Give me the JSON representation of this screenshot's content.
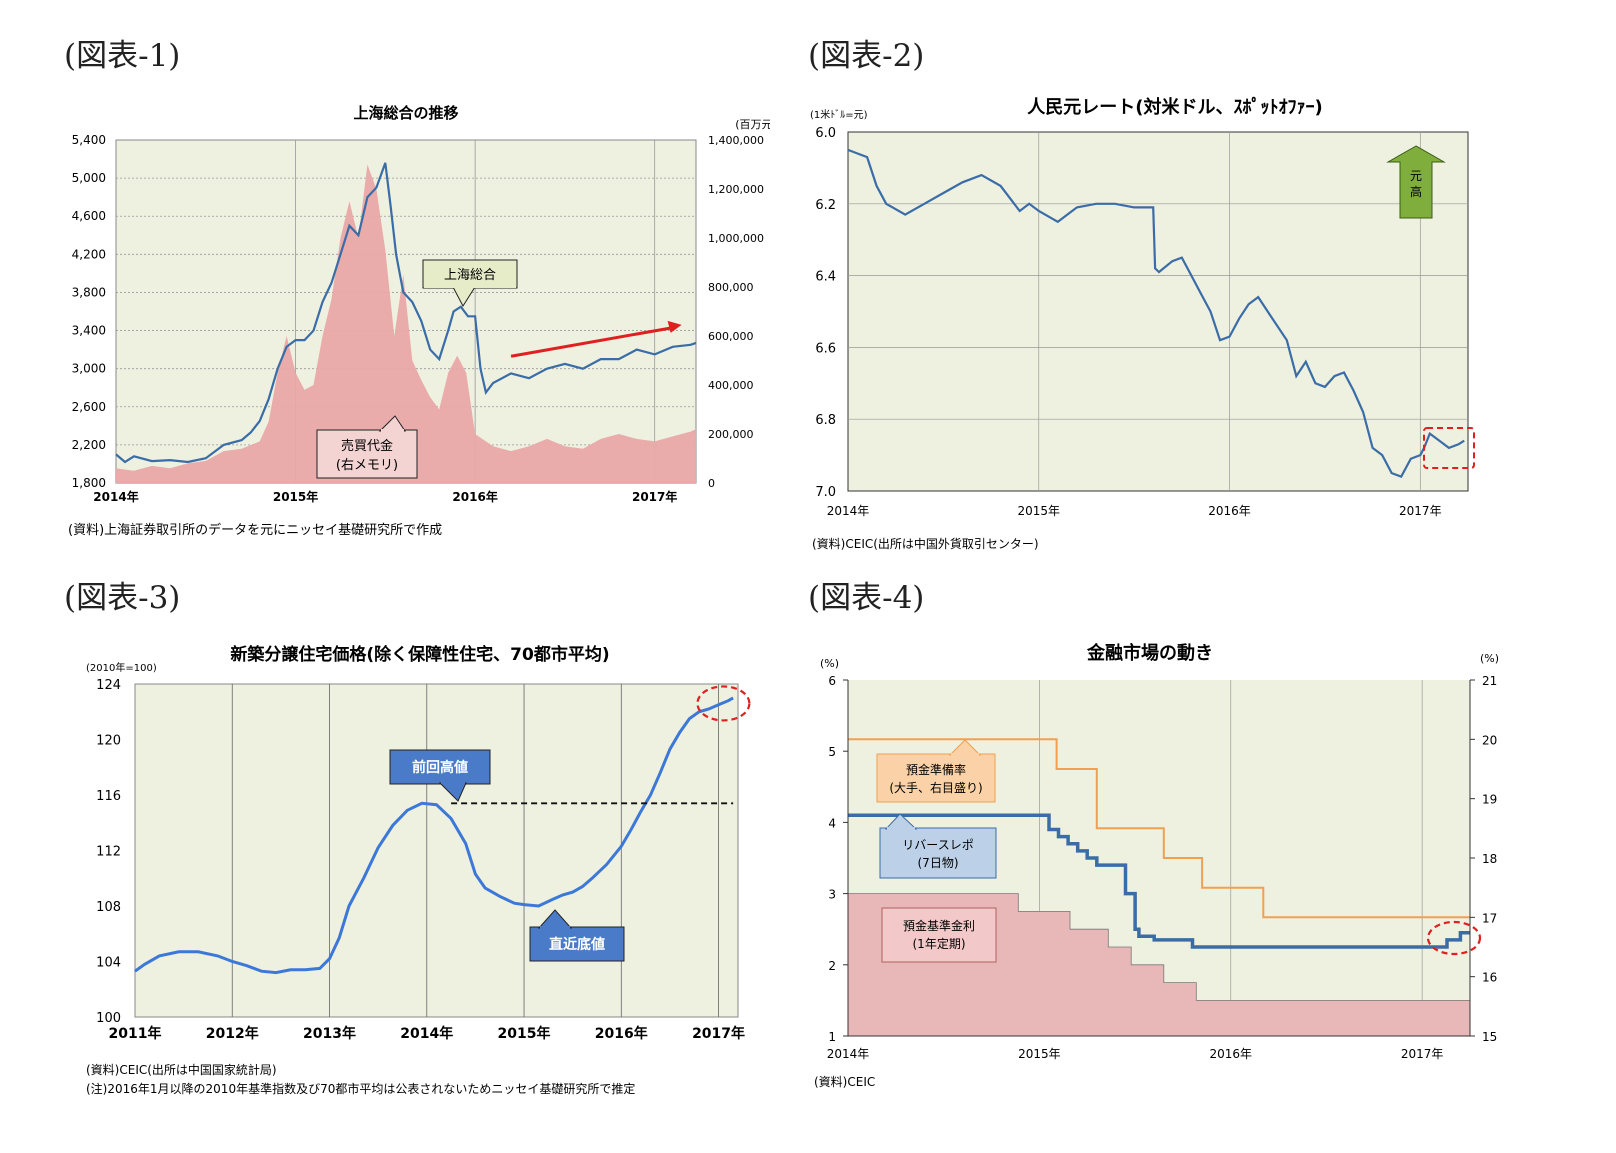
{
  "figures": [
    {
      "label": "(図表-1)"
    },
    {
      "label": "(図表-2)"
    },
    {
      "label": "(図表-3)"
    },
    {
      "label": "(図表-4)"
    }
  ],
  "chart_data": [
    {
      "type": "line",
      "title": "上海総合の推移",
      "right_unit": "(百万元)",
      "x_tick_labels": [
        "2014年",
        "2015年",
        "2016年",
        "2017年"
      ],
      "x_range": [
        2014.0,
        2017.23
      ],
      "y_left_ticks": [
        "1,800",
        "2,200",
        "2,600",
        "3,000",
        "3,400",
        "3,800",
        "4,200",
        "4,600",
        "5,000",
        "5,400"
      ],
      "y_left_range": [
        1800,
        5400
      ],
      "y_right_ticks": [
        "0",
        "200,000",
        "400,000",
        "600,000",
        "800,000",
        "1,000,000",
        "1,200,000",
        "1,400,000"
      ],
      "y_right_range": [
        0,
        1400000
      ],
      "series": [
        {
          "name": "上海総合",
          "axis": "left",
          "kind": "line",
          "x": [
            2014.0,
            2014.05,
            2014.1,
            2014.2,
            2014.3,
            2014.4,
            2014.5,
            2014.6,
            2014.7,
            2014.75,
            2014.8,
            2014.85,
            2014.9,
            2014.95,
            2015.0,
            2015.05,
            2015.1,
            2015.15,
            2015.2,
            2015.25,
            2015.3,
            2015.35,
            2015.4,
            2015.45,
            2015.5,
            2015.53,
            2015.56,
            2015.6,
            2015.65,
            2015.7,
            2015.75,
            2015.8,
            2015.85,
            2015.88,
            2015.92,
            2015.96,
            2016.0,
            2016.03,
            2016.06,
            2016.1,
            2016.2,
            2016.3,
            2016.4,
            2016.5,
            2016.6,
            2016.7,
            2016.8,
            2016.9,
            2017.0,
            2017.1,
            2017.2,
            2017.23
          ],
          "y": [
            2100,
            2020,
            2080,
            2030,
            2040,
            2020,
            2060,
            2200,
            2250,
            2330,
            2450,
            2680,
            3000,
            3230,
            3300,
            3300,
            3400,
            3700,
            3900,
            4200,
            4500,
            4400,
            4800,
            4900,
            5160,
            4700,
            4200,
            3800,
            3700,
            3500,
            3200,
            3100,
            3400,
            3600,
            3650,
            3550,
            3550,
            3000,
            2750,
            2850,
            2950,
            2900,
            3000,
            3050,
            3000,
            3100,
            3100,
            3200,
            3150,
            3230,
            3250,
            3270
          ]
        },
        {
          "name": "売買代金",
          "axis": "right",
          "kind": "area",
          "x": [
            2014.0,
            2014.1,
            2014.2,
            2014.3,
            2014.4,
            2014.5,
            2014.6,
            2014.7,
            2014.8,
            2014.85,
            2014.9,
            2014.95,
            2015.0,
            2015.05,
            2015.1,
            2015.15,
            2015.2,
            2015.25,
            2015.3,
            2015.35,
            2015.4,
            2015.45,
            2015.5,
            2015.55,
            2015.6,
            2015.65,
            2015.7,
            2015.75,
            2015.8,
            2015.85,
            2015.9,
            2015.95,
            2016.0,
            2016.1,
            2016.2,
            2016.3,
            2016.4,
            2016.5,
            2016.6,
            2016.7,
            2016.8,
            2016.9,
            2017.0,
            2017.1,
            2017.2,
            2017.23
          ],
          "y": [
            60000,
            50000,
            70000,
            60000,
            80000,
            90000,
            130000,
            140000,
            170000,
            250000,
            450000,
            600000,
            450000,
            380000,
            400000,
            600000,
            750000,
            1000000,
            1150000,
            1000000,
            1300000,
            1200000,
            950000,
            600000,
            850000,
            500000,
            420000,
            350000,
            300000,
            450000,
            520000,
            450000,
            200000,
            150000,
            130000,
            150000,
            180000,
            150000,
            140000,
            180000,
            200000,
            180000,
            170000,
            190000,
            210000,
            220000
          ]
        }
      ],
      "annotations": [
        {
          "text": "上海総合",
          "type": "callout"
        },
        {
          "text": "売買代金\n(右メモリ)",
          "type": "callout"
        },
        {
          "type": "arrow",
          "from": [
            2016.2,
            3130
          ],
          "to": [
            2017.15,
            3460
          ]
        }
      ],
      "source": "(資料)上海証券取引所のデータを元にニッセイ基礎研究所で作成",
      "colors": {
        "line": "#3a6da8",
        "area": "#e8a8a8",
        "bg": "#eef0e0",
        "arrow": "#e02020",
        "label_bg": "#e6ecc8"
      }
    },
    {
      "type": "line",
      "title": "人民元レート(対米ドル、ｽﾎﾟｯﾄｵﾌｧｰ)",
      "unit_label": "(1米ﾄﾞﾙ=元)",
      "x_tick_labels": [
        "2014年",
        "2015年",
        "2016年",
        "2017年"
      ],
      "x_range": [
        2014.0,
        2017.25
      ],
      "y_ticks": [
        "6.0",
        "6.2",
        "6.4",
        "6.6",
        "6.8",
        "7.0"
      ],
      "y_range": [
        6.0,
        7.0
      ],
      "y_inverted": true,
      "series": [
        {
          "name": "人民元レート",
          "x": [
            2014.0,
            2014.05,
            2014.1,
            2014.15,
            2014.2,
            2014.3,
            2014.4,
            2014.5,
            2014.6,
            2014.7,
            2014.8,
            2014.9,
            2014.95,
            2015.0,
            2015.1,
            2015.2,
            2015.3,
            2015.4,
            2015.5,
            2015.6,
            2015.61,
            2015.63,
            2015.7,
            2015.75,
            2015.8,
            2015.85,
            2015.9,
            2015.95,
            2016.0,
            2016.02,
            2016.05,
            2016.1,
            2016.15,
            2016.2,
            2016.3,
            2016.35,
            2016.4,
            2016.45,
            2016.5,
            2016.55,
            2016.6,
            2016.65,
            2016.7,
            2016.75,
            2016.8,
            2016.85,
            2016.9,
            2016.95,
            2017.0,
            2017.02,
            2017.05,
            2017.1,
            2017.15,
            2017.2,
            2017.23
          ],
          "y": [
            6.05,
            6.06,
            6.07,
            6.15,
            6.2,
            6.23,
            6.2,
            6.17,
            6.14,
            6.12,
            6.15,
            6.22,
            6.2,
            6.22,
            6.25,
            6.21,
            6.2,
            6.2,
            6.21,
            6.21,
            6.38,
            6.39,
            6.36,
            6.35,
            6.4,
            6.45,
            6.5,
            6.58,
            6.57,
            6.55,
            6.52,
            6.48,
            6.46,
            6.5,
            6.58,
            6.68,
            6.64,
            6.7,
            6.71,
            6.68,
            6.67,
            6.72,
            6.78,
            6.88,
            6.9,
            6.95,
            6.96,
            6.91,
            6.9,
            6.88,
            6.84,
            6.86,
            6.88,
            6.87,
            6.86
          ]
        }
      ],
      "annotations": [
        {
          "text": "元高",
          "type": "arrow-up"
        },
        {
          "type": "dashed-box"
        }
      ],
      "source": "(資料)CEIC(出所は中国外貨取引センター)",
      "colors": {
        "line": "#3a6da8",
        "bg": "#eef0e0",
        "arrow_fill": "#7fae3c",
        "highlight": "#e02020"
      }
    },
    {
      "type": "line",
      "title": "新築分譲住宅価格(除く保障性住宅、70都市平均)",
      "unit_label": "(2010年=100)",
      "x_tick_labels": [
        "2011年",
        "2012年",
        "2013年",
        "2014年",
        "2015年",
        "2016年",
        "2017年"
      ],
      "x_range": [
        2011.0,
        2017.2
      ],
      "y_ticks": [
        "100",
        "104",
        "108",
        "112",
        "116",
        "120",
        "124"
      ],
      "y_range": [
        100,
        124
      ],
      "series": [
        {
          "name": "新築分譲住宅価格",
          "x": [
            2011.0,
            2011.1,
            2011.25,
            2011.45,
            2011.65,
            2011.85,
            2012.0,
            2012.15,
            2012.3,
            2012.45,
            2012.6,
            2012.75,
            2012.9,
            2013.0,
            2013.1,
            2013.2,
            2013.35,
            2013.5,
            2013.65,
            2013.8,
            2013.95,
            2014.1,
            2014.25,
            2014.4,
            2014.5,
            2014.6,
            2014.75,
            2014.9,
            2015.0,
            2015.15,
            2015.3,
            2015.4,
            2015.5,
            2015.6,
            2015.7,
            2015.85,
            2016.0,
            2016.1,
            2016.2,
            2016.3,
            2016.4,
            2016.5,
            2016.6,
            2016.7,
            2016.8,
            2016.9,
            2017.0,
            2017.1,
            2017.15
          ],
          "y": [
            103.3,
            103.8,
            104.4,
            104.7,
            104.7,
            104.4,
            104.0,
            103.7,
            103.3,
            103.2,
            103.4,
            103.4,
            103.5,
            104.2,
            105.7,
            108.0,
            110.0,
            112.2,
            113.8,
            114.9,
            115.4,
            115.3,
            114.3,
            112.5,
            110.3,
            109.3,
            108.7,
            108.2,
            108.1,
            108.0,
            108.5,
            108.8,
            109.0,
            109.4,
            110.0,
            111.0,
            112.3,
            113.5,
            114.8,
            116.0,
            117.6,
            119.3,
            120.5,
            121.5,
            122.0,
            122.2,
            122.5,
            122.8,
            123.0
          ]
        }
      ],
      "reference_line": {
        "value": 115.4,
        "style": "dashed"
      },
      "annotations": [
        {
          "text": "前回高値",
          "type": "callout"
        },
        {
          "text": "直近底値",
          "type": "callout"
        },
        {
          "type": "dashed-ellipse"
        }
      ],
      "source_lines": [
        "(資料)CEIC(出所は中国国家統計局)",
        "(注)2016年1月以降の2010年基準指数及び70都市平均は公表されないためニッセイ基礎研究所で推定"
      ],
      "colors": {
        "line": "#3c78d8",
        "bg": "#eef0e0",
        "callout": "#4a7bc8",
        "highlight": "#e02020"
      }
    },
    {
      "type": "line",
      "title": "金融市場の動き",
      "left_unit": "(%)",
      "right_unit": "(%)",
      "x_tick_labels": [
        "2014年",
        "2015年",
        "2016年",
        "2017年"
      ],
      "x_range": [
        2014.0,
        2017.25
      ],
      "y_left_ticks": [
        "1",
        "2",
        "3",
        "4",
        "5",
        "6"
      ],
      "y_left_range": [
        1,
        6
      ],
      "y_right_ticks": [
        "15",
        "16",
        "17",
        "18",
        "19",
        "20",
        "21"
      ],
      "y_right_range": [
        15,
        21
      ],
      "series": [
        {
          "name": "預金準備率(大手、右目盛り)",
          "axis": "right",
          "kind": "step",
          "x": [
            2014.0,
            2015.09,
            2015.3,
            2015.65,
            2015.85,
            2016.17,
            2017.25
          ],
          "y": [
            20.0,
            19.5,
            18.5,
            18.0,
            17.5,
            17.0,
            17.0
          ]
        },
        {
          "name": "リバースレポ(7日物)",
          "axis": "left",
          "kind": "step",
          "x": [
            2014.0,
            2015.05,
            2015.1,
            2015.15,
            2015.2,
            2015.25,
            2015.3,
            2015.35,
            2015.45,
            2015.5,
            2015.52,
            2015.6,
            2015.75,
            2015.8,
            2017.05,
            2017.13,
            2017.2,
            2017.25
          ],
          "y": [
            4.1,
            3.9,
            3.8,
            3.7,
            3.6,
            3.5,
            3.4,
            3.4,
            3.0,
            2.5,
            2.4,
            2.35,
            2.35,
            2.25,
            2.25,
            2.35,
            2.45,
            2.45
          ]
        },
        {
          "name": "預金基準金利(1年定期)",
          "axis": "left",
          "kind": "step-area",
          "x": [
            2014.0,
            2014.89,
            2015.16,
            2015.36,
            2015.48,
            2015.65,
            2015.82,
            2017.25
          ],
          "y": [
            3.0,
            2.75,
            2.5,
            2.25,
            2.0,
            1.75,
            1.5,
            1.5
          ]
        }
      ],
      "annotations": [
        {
          "type": "dashed-ellipse"
        }
      ],
      "source": "(資料)CEIC",
      "colors": {
        "reserve": "#f0a050",
        "reverse_repo": "#3a6da8",
        "deposit_area": "#e8b8b8",
        "bg": "#eef0e0",
        "highlight": "#e02020",
        "reserve_label_bg": "#fbd2a8",
        "repo_label_bg": "#bcd0e8",
        "deposit_label_bg": "#f2c8c8"
      }
    }
  ]
}
